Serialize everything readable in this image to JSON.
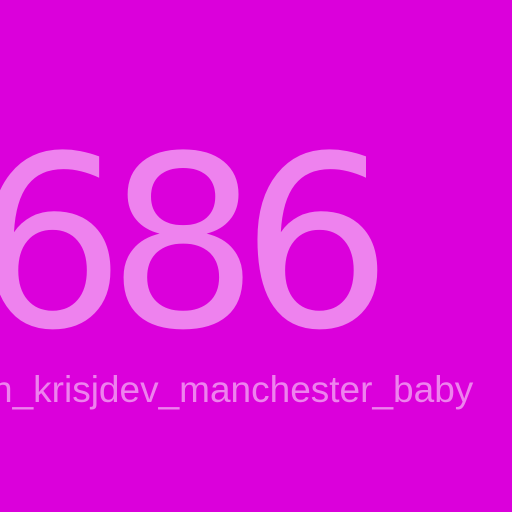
{
  "display": {
    "number": "686",
    "caption": "n_krisjdev_manchester_baby"
  },
  "colors": {
    "background": "#db00db",
    "text": "#ee82ee"
  }
}
